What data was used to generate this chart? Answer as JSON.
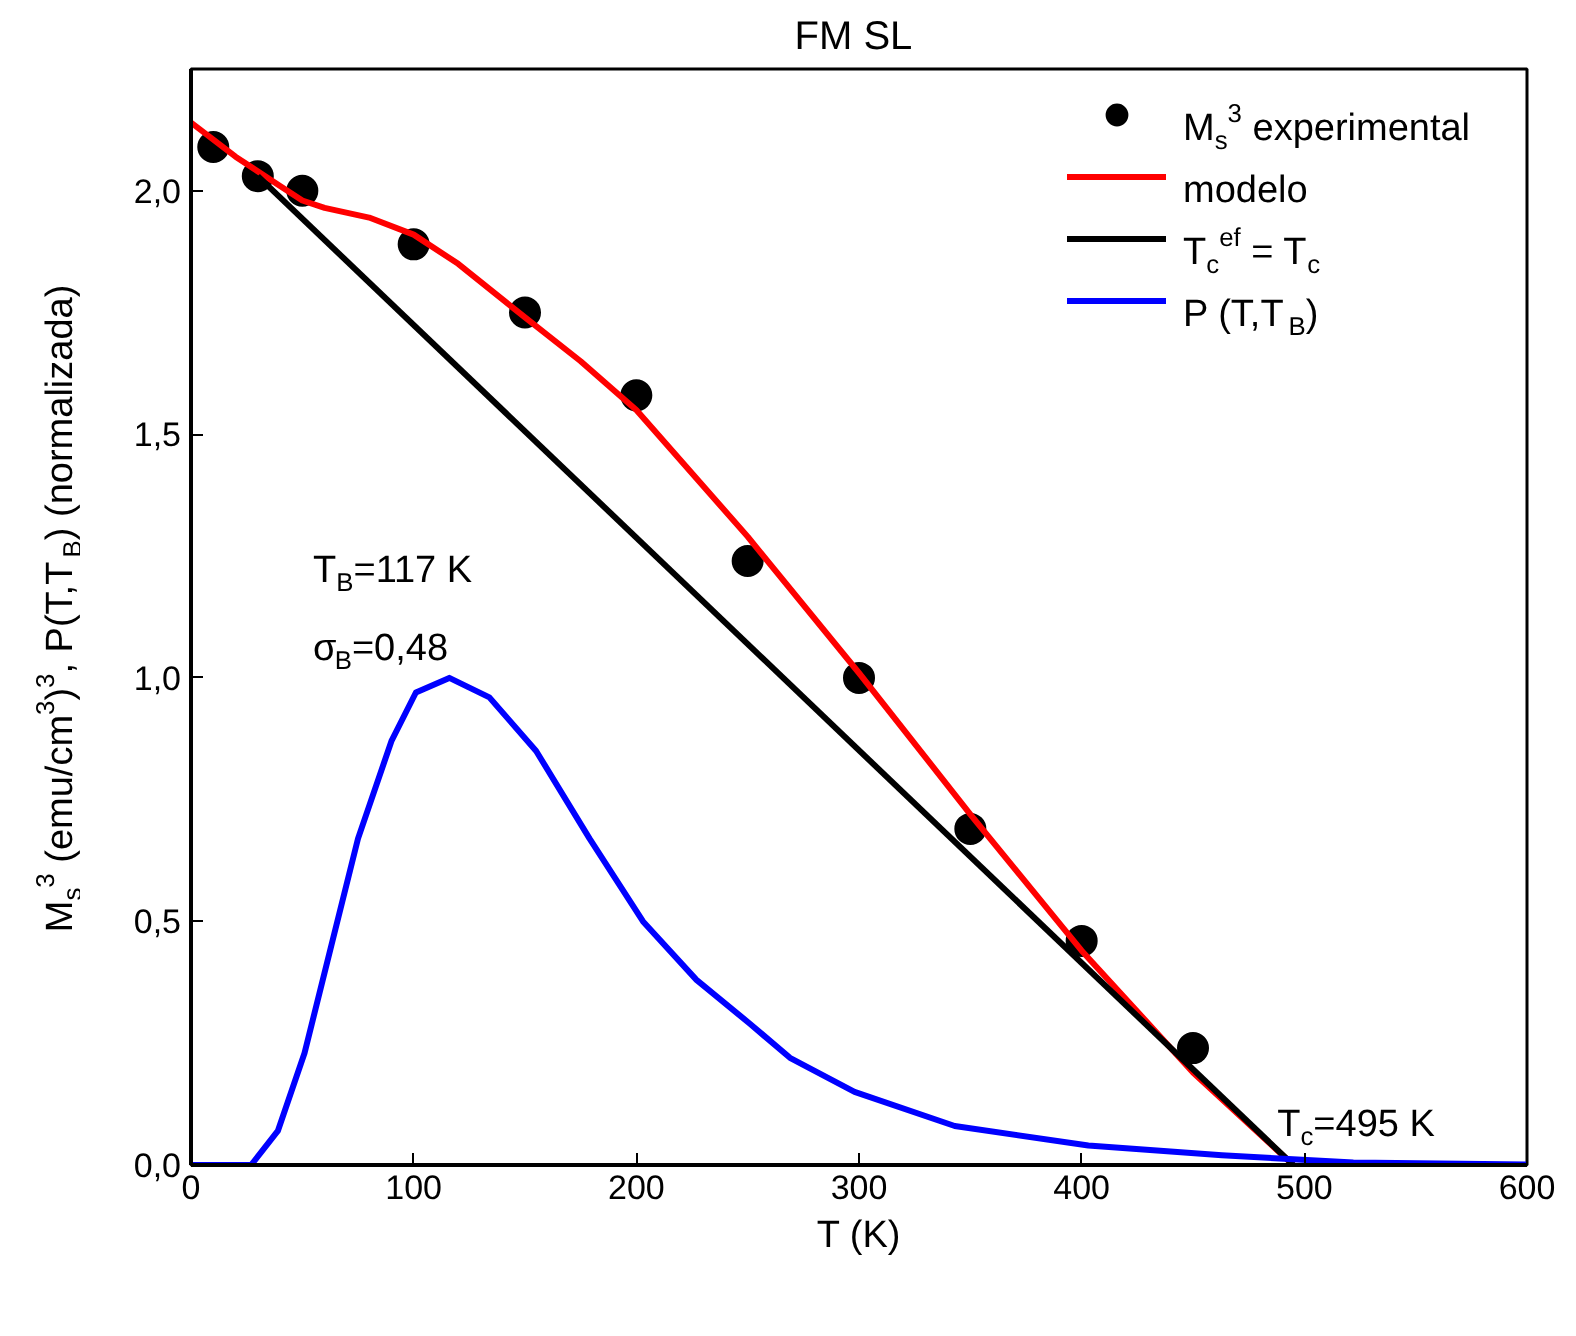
{
  "chart_data": {
    "type": "line",
    "title": "FM  SL",
    "xlabel": "T (K)",
    "ylabel": "M$_{s}$$^{3}$ (emu/cm$^{3}$)$^{3}$, P(T,T$_{B}$) (normalizada)",
    "xlim": [
      0,
      600
    ],
    "ylim": [
      0,
      2.25
    ],
    "xticks": [
      0,
      100,
      200,
      300,
      400,
      500,
      600
    ],
    "yticks": [
      {
        "value": 0,
        "label": "0,0"
      },
      {
        "value": 0.5,
        "label": "0,5"
      },
      {
        "value": 1.0,
        "label": "1,0"
      },
      {
        "value": 1.5,
        "label": "1,5"
      },
      {
        "value": 2.0,
        "label": "2,0"
      }
    ],
    "grid": false,
    "legend": "top right",
    "series": [
      {
        "name": "M$_{s}$$^{3}$ experimental",
        "type": "scatter",
        "marker": "circle",
        "color": "#000000",
        "x": [
          10,
          30,
          50,
          100,
          150,
          200,
          250,
          300,
          350,
          400,
          450
        ],
        "values": [
          2.09,
          2.03,
          2.0,
          1.89,
          1.75,
          1.58,
          1.24,
          1.0,
          0.69,
          0.46,
          0.24
        ]
      },
      {
        "name": "modelo",
        "color": "#ff0000",
        "x": [
          0,
          20,
          40,
          50,
          60,
          80,
          100,
          120,
          150,
          175,
          200,
          250,
          300,
          350,
          400,
          450,
          495
        ],
        "values": [
          2.14,
          2.07,
          2.01,
          1.98,
          1.965,
          1.945,
          1.91,
          1.85,
          1.74,
          1.65,
          1.55,
          1.29,
          1.01,
          0.72,
          0.44,
          0.19,
          0.0
        ]
      },
      {
        "name": "T$_{c}$$^{ef}$ = T$_{c}$",
        "color": "#000000",
        "x": [
          30,
          495
        ],
        "values": [
          2.03,
          0.0
        ]
      },
      {
        "name": "P (T,T$_{B}$)",
        "color": "#0000ff",
        "x": [
          0,
          20,
          27,
          39,
          51,
          63,
          75,
          90,
          101,
          116,
          134,
          155,
          179,
          203,
          227,
          251,
          269,
          298,
          343,
          403,
          463,
          522,
          600
        ],
        "values": [
          0.0,
          0.0,
          0.0,
          0.07,
          0.23,
          0.45,
          0.67,
          0.87,
          0.97,
          1.0,
          0.96,
          0.85,
          0.67,
          0.5,
          0.38,
          0.29,
          0.22,
          0.15,
          0.08,
          0.04,
          0.02,
          0.005,
          0.001
        ]
      }
    ],
    "annotations": [
      "T$_{B}$=117 K",
      "σ$_{B}$=0,48",
      {
        "text": "T$_{c}$=495 K",
        "x": 495,
        "y": 0.0
      }
    ]
  }
}
